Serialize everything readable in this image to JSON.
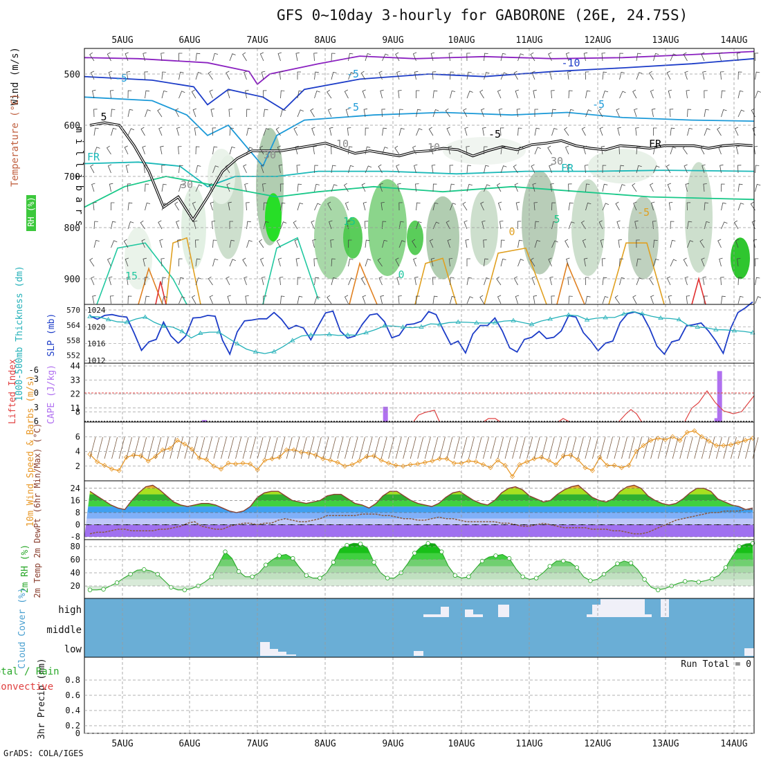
{
  "title": "GFS 0~10day 3-hourly for GABORONE (26E, 24.75S)",
  "credit": "GrADS: COLA/IGES",
  "colors": {
    "wind_barb": "#444444",
    "temp_cold": "#1a54c8",
    "temp_warm": "#e0a020",
    "rh_green": "#3cc83c",
    "slp": "#1c3cc8",
    "thickness": "#22b0b8",
    "cape_bar": "#b070f0",
    "lifted_index": "#e04040",
    "wind_speed": "#e89828",
    "wind_10m_barb": "#7a5a40",
    "temp_fill": "#30b030",
    "dewpt": "#8a5a40",
    "rh2m": "#2aa82a",
    "cloud_bg": "#6aaed6",
    "cloud_fill": "#f0f0f8"
  },
  "chart_data": [
    {
      "name": "upper_air",
      "type": "heatmap",
      "xlabel": "",
      "ylabel": "m i l l i b a r s",
      "side_labels": [
        "Wind (m/s)",
        "Temperature (°C)",
        "RH (%)"
      ],
      "x_ticks": [
        "5AUG",
        "6AUG",
        "7AUG",
        "8AUG",
        "9AUG",
        "10AUG",
        "11AUG",
        "12AUG",
        "13AUG",
        "14AUG"
      ],
      "y_ticks": [
        500,
        600,
        700,
        800,
        900
      ],
      "ylim": [
        950,
        450
      ],
      "contour_labels": [
        "-10",
        "-5",
        "-5",
        "-5",
        "5",
        "-5",
        "FR",
        "FR",
        "FR",
        "-5",
        "5",
        "15",
        "0",
        "0",
        "15",
        "10",
        "10",
        "30",
        "30",
        "30",
        "-5"
      ],
      "freezing_level_mb": [
        600,
        595,
        600,
        640,
        690,
        760,
        740,
        785,
        740,
        690,
        665,
        650,
        650,
        650,
        645,
        640,
        635,
        645,
        655,
        650,
        655,
        660,
        652,
        650,
        645,
        648,
        660,
        650,
        642,
        648,
        638,
        635,
        630,
        640,
        645,
        648,
        640,
        642,
        645,
        640,
        640,
        640,
        645,
        640,
        638,
        640
      ]
    },
    {
      "name": "slp_thickness",
      "type": "line",
      "ylabel_left": "1000-500mb Thickness (dm)",
      "ylabel_right": "SLP (mb)",
      "left_ticks": [
        552,
        558,
        564,
        570
      ],
      "right_ticks": [
        1012,
        1016,
        1020,
        1024
      ],
      "series": [
        {
          "name": "SLP (mb)",
          "values": [
            1022.6,
            1021.8,
            1022.7,
            1022.9,
            1022.5,
            1022.3,
            1018.5,
            1014.4,
            1016.4,
            1017.0,
            1021.1,
            1017.8,
            1016.1,
            1017.8,
            1022.1,
            1022.2,
            1022.7,
            1022.5,
            1016.8,
            1013.5,
            1018.8,
            1021.4,
            1021.6,
            1021.9,
            1021.9,
            1023.4,
            1021.8,
            1019.5,
            1020.3,
            1019.7,
            1016.9,
            1020.2,
            1023.3,
            1023.7,
            1019.0,
            1017.3,
            1017.8,
            1020.6,
            1022.8,
            1023.1,
            1021.2,
            1017.4,
            1018.0,
            1020.5,
            1020.7,
            1021.3,
            1023.6,
            1022.9,
            1019.2,
            1015.8,
            1016.6,
            1013.8,
            1018.3,
            1020.3,
            1020.3,
            1022.1,
            1019.0,
            1015.0,
            1014.0,
            1017.0,
            1017.5,
            1018.9,
            1017.2,
            1017.5,
            1019.0,
            1022.6,
            1022.3,
            1018.6,
            1016.7,
            1014.3,
            1016.1,
            1016.6,
            1021.0,
            1023.1,
            1023.5,
            1022.9,
            1019.6,
            1015.4,
            1013.5,
            1016.4,
            1016.9,
            1020.2,
            1020.5,
            1020.9,
            1019.0,
            1016.6,
            1013.7,
            1019.6,
            1023.4,
            1024.5,
            1025.9
          ]
        },
        {
          "name": "Thickness (dm)",
          "values": [
            567.4,
            567.2,
            566.2,
            565.3,
            565.1,
            566.4,
            567.2,
            565.1,
            563.6,
            563.2,
            561.5,
            558.9,
            560.8,
            561.2,
            561.2,
            558.9,
            556.6,
            554.5,
            553.4,
            552.7,
            553.5,
            555.5,
            557.9,
            559.7,
            560.1,
            560.1,
            560.3,
            559.9,
            560.1,
            560.0,
            561.0,
            562.2,
            563.7,
            563.6,
            563.2,
            563.0,
            563.3,
            564.5,
            564.3,
            565.0,
            565.2,
            565.1,
            564.9,
            564.8,
            565.0,
            565.6,
            565.8,
            565.0,
            564.3,
            565.6,
            566.4,
            567.3,
            568.0,
            567.7,
            566.1,
            566.7,
            567.0,
            567.0,
            568.4,
            569.3,
            568.5,
            567.5,
            566.8,
            566.6,
            566.2,
            563.8,
            563.3,
            562.9,
            562.2,
            562.1,
            561.8,
            561.5,
            561.0
          ]
        }
      ]
    },
    {
      "name": "cape_li",
      "type": "bar",
      "ylabel_left": "Lifted Index",
      "ylabel_right": "CAPE (J/kg)",
      "left_ticks": [
        "-6",
        "-3",
        "0",
        "3",
        "6"
      ],
      "right_ticks": [
        8,
        11,
        22,
        33,
        44
      ],
      "cape_values": [
        0,
        0,
        0,
        0,
        0,
        0,
        0,
        0,
        0,
        0,
        0,
        0,
        0,
        0,
        0,
        0,
        0,
        0,
        0,
        0,
        0,
        0,
        0,
        0,
        0,
        0,
        0,
        0,
        0,
        0,
        0,
        0,
        0,
        0,
        0,
        0,
        0,
        0,
        0,
        0,
        0,
        1.5,
        0,
        0,
        0,
        0,
        0,
        0,
        0,
        0,
        0,
        0,
        0,
        0,
        0,
        0,
        0,
        0,
        0,
        0,
        0,
        0,
        0,
        0,
        0,
        0,
        0,
        0,
        0,
        0,
        0,
        0,
        0,
        0,
        0,
        0,
        0,
        0,
        0,
        0,
        0,
        0,
        0,
        0,
        0,
        0,
        0,
        0,
        0,
        0,
        0,
        0,
        0,
        0,
        0,
        0,
        0,
        0,
        0,
        0,
        0,
        0,
        0,
        0,
        0,
        0,
        12,
        0,
        0,
        0,
        0,
        0,
        0,
        0,
        0,
        0,
        0,
        0,
        0,
        0,
        0,
        0,
        0,
        0,
        0,
        0,
        0,
        0,
        0,
        0,
        0,
        0,
        0,
        0,
        0,
        0,
        0,
        0,
        0,
        0,
        0,
        0,
        0,
        0,
        0,
        0,
        0,
        0,
        0,
        0,
        0,
        0,
        0,
        0,
        0,
        0,
        0,
        0,
        0,
        0,
        0,
        0,
        0,
        0,
        0,
        0,
        0,
        0,
        0,
        0,
        0,
        0,
        0,
        0,
        0,
        0,
        0,
        0,
        0,
        0,
        0,
        0,
        0,
        0,
        0,
        0,
        0,
        0,
        0,
        0,
        0,
        0,
        0,
        0,
        0,
        0,
        0,
        0,
        0,
        0,
        0,
        0,
        0,
        0,
        0,
        0,
        0,
        0,
        0,
        0,
        0,
        0,
        0,
        0,
        0,
        0,
        0,
        0,
        0,
        0,
        0,
        0,
        0,
        0,
        0,
        3,
        40,
        0,
        0,
        0,
        0,
        0,
        0,
        0,
        0,
        0,
        0,
        0,
        0
      ]
    },
    {
      "name": "wind_10m",
      "type": "line",
      "ylabel": "10m Wind Speed & Barbs (m/s)",
      "y_ticks": [
        2,
        4,
        6
      ],
      "ylim": [
        0,
        8
      ],
      "values": [
        3.6,
        2.6,
        2.1,
        1.6,
        1.4,
        3.2,
        3.5,
        3.4,
        2.7,
        3.3,
        4.2,
        4.4,
        5.5,
        5.0,
        4.3,
        3.1,
        2.9,
        2.0,
        1.6,
        2.4,
        2.3,
        2.4,
        2.3,
        1.5,
        2.8,
        3.0,
        3.2,
        4.2,
        4.2,
        3.9,
        3.8,
        3.5,
        3.0,
        2.8,
        2.5,
        2.0,
        2.2,
        2.7,
        3.3,
        3.4,
        2.8,
        2.4,
        2.1,
        2.0,
        2.2,
        2.3,
        2.5,
        2.7,
        3.0,
        3.0,
        2.4,
        2.4,
        2.7,
        2.6,
        2.2,
        1.8,
        2.8,
        2.1,
        0.6,
        2.2,
        2.6,
        3.0,
        3.2,
        2.8,
        2.2,
        3.4,
        3.5,
        2.9,
        1.8,
        1.4,
        3.2,
        2.1,
        2.1,
        1.8,
        2.1,
        4.0,
        4.8,
        5.5,
        5.8,
        5.6,
        6.0,
        5.5,
        6.6,
        6.8,
        6.0,
        5.4,
        4.8,
        4.8,
        4.9,
        5.2,
        5.5,
        5.8
      ]
    },
    {
      "name": "temp_dewpt",
      "type": "area",
      "ylabel": "2m Temp 2m DewPt (6hr Min/Max) (°C)",
      "y_ticks": [
        "-8",
        "0",
        "8",
        "16",
        "24"
      ],
      "ylim": [
        -8,
        28
      ],
      "series": [
        {
          "name": "2m Temp",
          "values": [
            22,
            19,
            16,
            13,
            11,
            10,
            16,
            21,
            25,
            26,
            23,
            19,
            15,
            13,
            12,
            13,
            14,
            14,
            13,
            11,
            9,
            8,
            9,
            12,
            18,
            21,
            22,
            22,
            19,
            16,
            15,
            14,
            15,
            16,
            19,
            20,
            20,
            17,
            14,
            13,
            11,
            14,
            19,
            22,
            22,
            19,
            16,
            14,
            13,
            12,
            14,
            18,
            21,
            22,
            19,
            16,
            14,
            13,
            16,
            21,
            24,
            25,
            23,
            19,
            17,
            15,
            16,
            20,
            23,
            25,
            26,
            22,
            18,
            16,
            15,
            17,
            22,
            25,
            26,
            24,
            19,
            16,
            14,
            13,
            14,
            17,
            21,
            24,
            24,
            22,
            17,
            15,
            13,
            12,
            10,
            11
          ]
        },
        {
          "name": "2m DewPt",
          "values": [
            -6,
            -5,
            -5,
            -4,
            -3,
            -3,
            -4,
            -4,
            -4,
            -4,
            -3,
            -3,
            -2,
            -1,
            1,
            2,
            -1,
            -2,
            -3,
            -3,
            -1,
            0,
            1,
            1,
            0,
            1,
            1,
            3,
            4,
            3,
            2,
            2,
            3,
            4,
            6,
            6,
            6,
            6,
            6,
            7,
            7,
            7,
            6,
            6,
            5,
            4,
            4,
            3,
            3,
            4,
            5,
            4,
            4,
            3,
            2,
            2,
            2,
            2,
            2,
            1,
            1,
            0,
            -1,
            -1,
            0,
            1,
            0,
            -1,
            -2,
            -2,
            -2,
            -2,
            -3,
            -3,
            -3,
            -4,
            -4,
            -5,
            -6,
            -6,
            -5,
            -3,
            -1,
            1,
            3,
            4,
            5,
            6,
            7,
            8,
            8,
            9,
            9,
            9,
            10,
            10
          ]
        }
      ]
    },
    {
      "name": "rh_2m",
      "type": "area",
      "ylabel": "2m RH (%)",
      "y_ticks": [
        20,
        40,
        60,
        80
      ],
      "ylim": [
        0,
        90
      ],
      "values": [
        14,
        13,
        15,
        20,
        25,
        32,
        38,
        44,
        45,
        43,
        38,
        28,
        18,
        14,
        13,
        16,
        20,
        26,
        34,
        52,
        72,
        62,
        42,
        34,
        34,
        40,
        52,
        60,
        66,
        68,
        62,
        48,
        36,
        32,
        32,
        40,
        56,
        76,
        82,
        85,
        84,
        78,
        56,
        40,
        32,
        32,
        40,
        54,
        70,
        80,
        85,
        84,
        72,
        50,
        36,
        32,
        34,
        46,
        58,
        64,
        66,
        68,
        62,
        46,
        34,
        30,
        32,
        40,
        50,
        58,
        58,
        56,
        48,
        34,
        28,
        30,
        38,
        46,
        54,
        58,
        55,
        45,
        30,
        18,
        14,
        16,
        20,
        24,
        27,
        28,
        26,
        28,
        31,
        36,
        48,
        65,
        80,
        84,
        85
      ]
    },
    {
      "name": "cloud_cover",
      "type": "heatmap",
      "ylabel": "Cloud Cover (%)",
      "y_ticks": [
        "high",
        "middle",
        "low"
      ]
    },
    {
      "name": "precip",
      "type": "bar",
      "ylabel": "3hr Precip (mm)",
      "side_labels": [
        "Total / Rain",
        "Convective"
      ],
      "y_ticks": [
        "0",
        "0.2",
        "0.4",
        "0.6",
        "0.8"
      ],
      "ylim": [
        0,
        1
      ],
      "annotation": "Run Total = 0",
      "values": []
    }
  ]
}
